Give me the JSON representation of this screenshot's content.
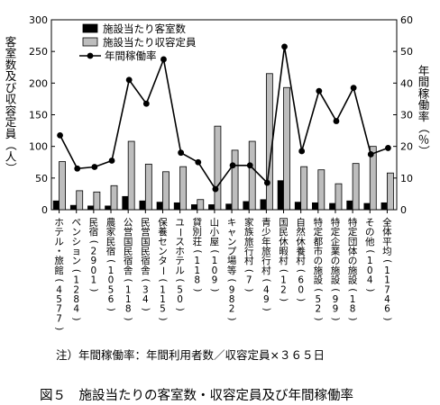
{
  "chart_data": {
    "type": "bar",
    "categories": [
      "ホテル・旅館(4577)",
      "ペンション(1284)",
      "民宿(2901)",
      "農家民宿(1056)",
      "公営国民宿舎(118)",
      "民営国民宿舎(34)",
      "保養センター(115)",
      "ユースホテル(50)",
      "貸別荘(118)",
      "山小屋(109)",
      "キャンプ場等(982)",
      "家族旅行村(7)",
      "青少年旅行村(49)",
      "国民休暇村(12)",
      "自然休養村(60)",
      "特定都市の施設(52)",
      "特定企業の施設(99)",
      "特定団体の施設(18)",
      "その他(104)",
      "全体平均(11746)"
    ],
    "series": [
      {
        "name": "施設当たり客室数",
        "axis": "left",
        "color": "#000000",
        "values": [
          14,
          7,
          6,
          6,
          21,
          14,
          12,
          11,
          8,
          8,
          9,
          13,
          16,
          46,
          12,
          11,
          10,
          14,
          10,
          11
        ]
      },
      {
        "name": "施設当たり収容定員",
        "axis": "left",
        "color": "#bdbdbd",
        "values": [
          76,
          30,
          28,
          38,
          108,
          72,
          60,
          68,
          16,
          132,
          94,
          108,
          215,
          193,
          68,
          63,
          41,
          73,
          100,
          58
        ]
      },
      {
        "name": "年間稼働率",
        "axis": "right",
        "type": "line",
        "values": [
          23.5,
          13,
          13.5,
          15.5,
          41,
          33.5,
          47.5,
          18,
          15,
          6.5,
          14,
          14,
          8.5,
          51.5,
          18.5,
          37.5,
          28,
          38.5,
          17.5,
          19.5
        ]
      }
    ],
    "ylim_left": [
      0,
      300
    ],
    "yticks_left": [
      0,
      50,
      100,
      150,
      200,
      250,
      300
    ],
    "ylim_right": [
      0,
      60
    ],
    "yticks_right": [
      0,
      10,
      20,
      30,
      40,
      50,
      60
    ],
    "ylabel_left": "客室数及び収容定員（人）",
    "ylabel_right": "年間稼働率（％）",
    "legend_position": "top-left",
    "grid": false
  },
  "note": "注）年間稼働率：年間利用者数／収容定員×３６５日",
  "caption": "図５　施設当たりの客室数・収容定員及び年間稼働率"
}
